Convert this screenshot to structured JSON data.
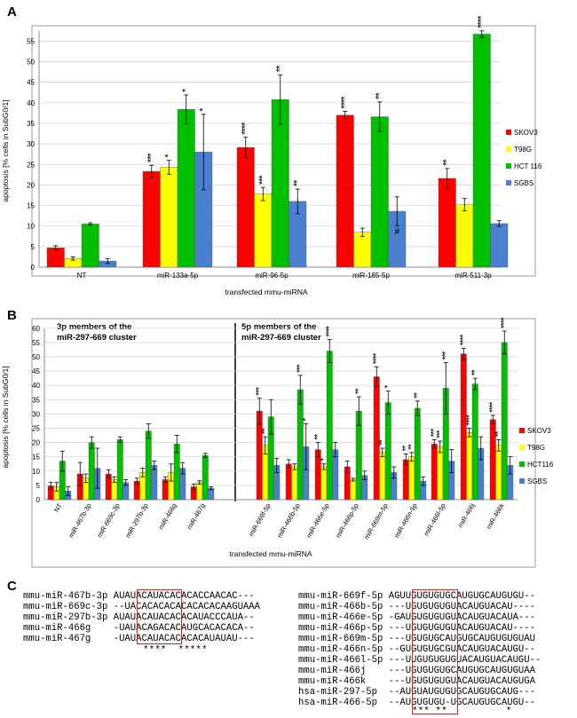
{
  "colors": {
    "SKOV3": "#ff0000",
    "T98G": "#ffff00",
    "HCT 116": "#00c000",
    "SGBS": "#4a7fd0"
  },
  "panels": {
    "a": "A",
    "b": "B",
    "c": "C"
  },
  "chart_data": [
    {
      "id": "A",
      "type": "bar",
      "categories": [
        "NT",
        "miR-133a-5p",
        "miR-96-5p",
        "miR-185-5p",
        "miR-511-3p"
      ],
      "series": [
        {
          "name": "SKOV3",
          "values": [
            4.7,
            23.3,
            29.1,
            37.0,
            21.6
          ],
          "errors": [
            0.5,
            1.5,
            2.5,
            0.9,
            2.4
          ],
          "stars": [
            "",
            "***",
            "****",
            "****",
            "**"
          ]
        },
        {
          "name": "T98G",
          "values": [
            2.1,
            24.3,
            17.8,
            8.5,
            15.2
          ],
          "errors": [
            0.4,
            1.7,
            1.6,
            1.0,
            1.5
          ],
          "stars": [
            "",
            "*",
            "***",
            "",
            ""
          ]
        },
        {
          "name": "HCT 116",
          "values": [
            10.5,
            38.4,
            40.8,
            36.6,
            56.7
          ],
          "errors": [
            0.3,
            3.5,
            6.0,
            3.6,
            0.8
          ],
          "stars": [
            "",
            "*",
            "**",
            "**",
            "****"
          ]
        },
        {
          "name": "SGBS",
          "values": [
            1.5,
            28.0,
            16.0,
            13.6,
            10.6
          ],
          "errors": [
            0.6,
            9.2,
            3.0,
            3.5,
            0.7
          ],
          "stars": [
            "",
            "*",
            "**",
            "#",
            ""
          ]
        }
      ],
      "ylim": [
        0,
        60
      ],
      "yticks": [
        0,
        5,
        10,
        15,
        20,
        25,
        30,
        35,
        40,
        45,
        50,
        55
      ],
      "ylabel": "apoptosis [% cells in SubG0/1]",
      "xlabel": "transfected mmu-miRNA",
      "legend": [
        "SKOV3",
        "T98G",
        "HCT 116",
        "SGBS"
      ]
    },
    {
      "id": "B",
      "type": "bar",
      "categories": [
        "NT",
        "miR-467b-3p",
        "miR-669c-3p",
        "miR-297b-3p",
        "miR-466g",
        "miR-467g",
        "miR-669f-5p",
        "miR-466b-5p",
        "miR-466e-5p",
        "miR-466p-5p",
        "miR-669m-5p",
        "miR-466n-5p",
        "miR-466l-5p",
        "miR-466j",
        "miR-466k"
      ],
      "series": [
        {
          "name": "SKOV3",
          "values": [
            4.8,
            9.0,
            9.0,
            6.5,
            7.0,
            4.5,
            31.0,
            12.5,
            17.5,
            11.5,
            43.0,
            14.0,
            19.5,
            51.0,
            28.0
          ],
          "errors": [
            1.2,
            4.0,
            1.5,
            1.0,
            1.0,
            1.0,
            4.5,
            1.5,
            2.5,
            2.0,
            3.5,
            2.0,
            1.5,
            2.0,
            1.5
          ],
          "stars": [
            "",
            "",
            "",
            "",
            "",
            "",
            "***",
            "",
            "**",
            "",
            "****",
            "**",
            "***",
            "****",
            "****"
          ]
        },
        {
          "name": "T98G",
          "values": [
            4.5,
            7.5,
            7.0,
            9.5,
            9.5,
            6.0,
            19.0,
            11.5,
            11.5,
            7.0,
            16.5,
            15.0,
            18.5,
            23.5,
            19.0
          ],
          "errors": [
            1.5,
            1.5,
            1.0,
            1.5,
            3.0,
            0.6,
            3.0,
            1.0,
            1.0,
            0.5,
            1.5,
            1.5,
            2.0,
            1.5,
            2.0
          ],
          "stars": [
            "",
            "",
            "",
            "",
            "",
            "",
            "**",
            "",
            "*",
            "",
            "**",
            "**",
            "***",
            "****",
            "**"
          ]
        },
        {
          "name": "HCT116",
          "values": [
            13.5,
            20.0,
            21.0,
            24.0,
            19.5,
            15.5,
            29.0,
            38.5,
            52.0,
            31.0,
            34.0,
            32.0,
            39.0,
            40.5,
            55.0
          ],
          "errors": [
            3.5,
            2.0,
            1.0,
            2.5,
            3.0,
            0.7,
            6.0,
            5.0,
            4.0,
            5.0,
            4.0,
            2.5,
            9.0,
            2.0,
            4.0
          ],
          "stars": [
            "",
            "",
            "",
            "",
            "",
            "",
            "",
            "***",
            "****",
            "**",
            "*",
            "**",
            "***",
            "**",
            "****"
          ]
        },
        {
          "name": "SGBS",
          "values": [
            3.0,
            11.0,
            6.0,
            12.0,
            11.0,
            4.0,
            12.0,
            18.5,
            17.5,
            8.5,
            9.5,
            6.5,
            13.5,
            18.0,
            12.0
          ],
          "errors": [
            1.5,
            7.0,
            1.0,
            1.5,
            2.0,
            0.5,
            2.5,
            8.0,
            2.5,
            1.5,
            2.0,
            1.5,
            4.0,
            4.0,
            3.0
          ],
          "stars": [
            "",
            "",
            "",
            "",
            "",
            "",
            "",
            "*",
            "",
            "",
            "",
            "",
            "",
            "",
            ""
          ]
        }
      ],
      "ylim": [
        0,
        60
      ],
      "yticks": [
        0,
        5,
        10,
        15,
        20,
        25,
        30,
        35,
        40,
        45,
        50,
        55,
        60
      ],
      "ylabel": "apoptosis [% cells in SubG0/1]",
      "xlabel": "transfected mmu-miRNA",
      "legend": [
        "SKOV3",
        "T98G",
        "HCT116",
        "SGBS"
      ],
      "annotations": [
        "3p members of the miR-297-669 cluster",
        "5p members of the miR-297-669 cluster"
      ]
    }
  ],
  "alignment": {
    "left": [
      "mmu-miR-467b-3p AUAUACAUACACACACCAACAC---",
      "mmu-miR-669c-3p --UACACACACACACACACAAGUAAA",
      "mmu-miR-297b-3p AUAUACAUACACACAUACCCAUA--",
      "mmu-miR-466g    -UAUACAGACACAUGCACACACA--",
      "mmu-miR-467g    -UAUACAUACACACACAUAUAU---"
    ],
    "left_stars": "****  *****",
    "right": [
      "mmu-miR-669f-5p AGUUGUGUGUGCAUGUGCAUGUGU--",
      "mmu-miR-466b-5p ---UGUGUGUGUACAUGUACAU----",
      "mmu-miR-466e-5p -GAUGUGUGUGUACAUGUACAUA---",
      "mmu-miR-466p-5p ---UGUGUGUGUACAUGUACAU----",
      "mmu-miR-669m-5p ---UGUGUGCAUGUGCAUGUGUGUAU",
      "mmu-miR-466n-5p --GUGUGUGCGUACAUGUACAUGU--",
      "mmu-miR-466l-5p ---UUGUGUGUGUACAUGUACAUGU--",
      "mmu-miR-466j    ---UGUGUGUGCAUGUGCAUGUGUAA",
      "mmu-miR-466k    ---UGUGUGUGUACAUGUACAUGUGA",
      "hsa-miR-297-5p  --AUGUAUGUGUGCAUGUGCAUG---",
      "hsa-miR-466-5p  --AUGUGUGU-UGCAUGUGCAUGU--"
    ],
    "right_stars": "*** **          *"
  }
}
